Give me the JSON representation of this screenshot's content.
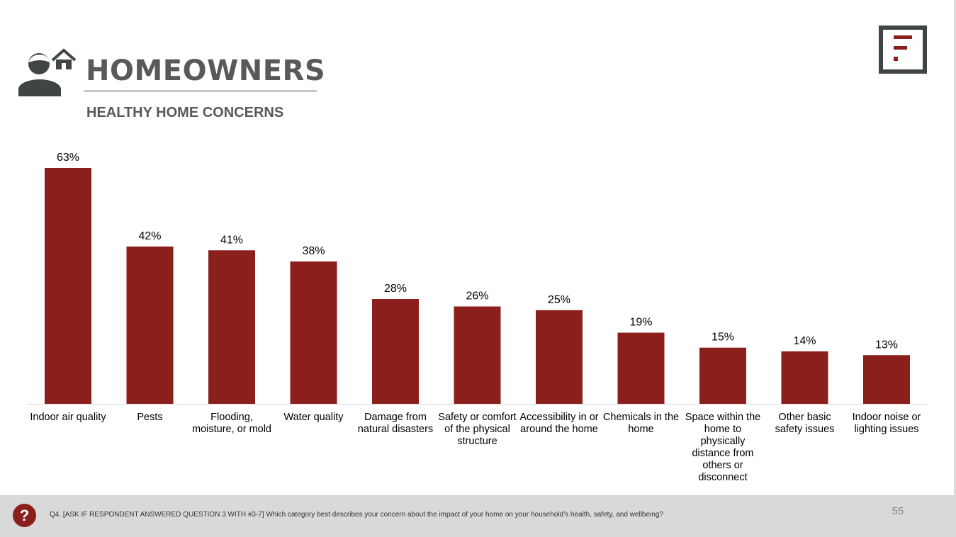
{
  "header": {
    "title": "HOMEOWNERS",
    "subtitle": "HEALTHY HOME CONCERNS",
    "icon": "homeowner-person-house-icon",
    "logo": "brand-f-logo"
  },
  "colors": {
    "bar": "#8b1f1c",
    "title_text": "#595959",
    "footer_bg": "#d9d9d9",
    "logo_frame": "#3f4544"
  },
  "chart_data": {
    "type": "bar",
    "title": "HEALTHY HOME CONCERNS",
    "categories": [
      "Indoor air quality",
      "Pests",
      "Flooding, moisture, or mold",
      "Water quality",
      "Damage from natural disasters",
      "Safety or comfort of the physical structure",
      "Accessibility in or around the home",
      "Chemicals in the home",
      "Space within the home to physically distance from others or disconnect",
      "Other basic safety issues",
      "Indoor noise or lighting issues"
    ],
    "category_lines": [
      [
        "Indoor air quality"
      ],
      [
        "Pests"
      ],
      [
        "Flooding,",
        "moisture, or mold"
      ],
      [
        "Water quality"
      ],
      [
        "Damage from",
        "natural disasters"
      ],
      [
        "Safety or comfort",
        "of the physical",
        "structure"
      ],
      [
        "Accessibility in or",
        "around the home"
      ],
      [
        "Chemicals in the",
        "home"
      ],
      [
        "Space within the",
        "home to",
        "physically",
        "distance from",
        "others or",
        "disconnect"
      ],
      [
        "Other basic",
        "safety issues"
      ],
      [
        "Indoor noise or",
        "lighting issues"
      ]
    ],
    "values": [
      63,
      42,
      41,
      38,
      28,
      26,
      25,
      19,
      15,
      14,
      13
    ],
    "value_labels": [
      "63%",
      "42%",
      "41%",
      "38%",
      "28%",
      "26%",
      "25%",
      "19%",
      "15%",
      "14%",
      "13%"
    ],
    "unit": "%",
    "ylim": [
      0,
      63
    ],
    "grid": false,
    "legend": "none"
  },
  "footer": {
    "badge": "?",
    "question": "Q4. [ASK IF RESPONDENT ANSWERED QUESTION 3 WITH #3-7] Which category best describes your concern about the impact of your home on your household’s health, safety, and wellbeing?",
    "page_number": "55"
  }
}
